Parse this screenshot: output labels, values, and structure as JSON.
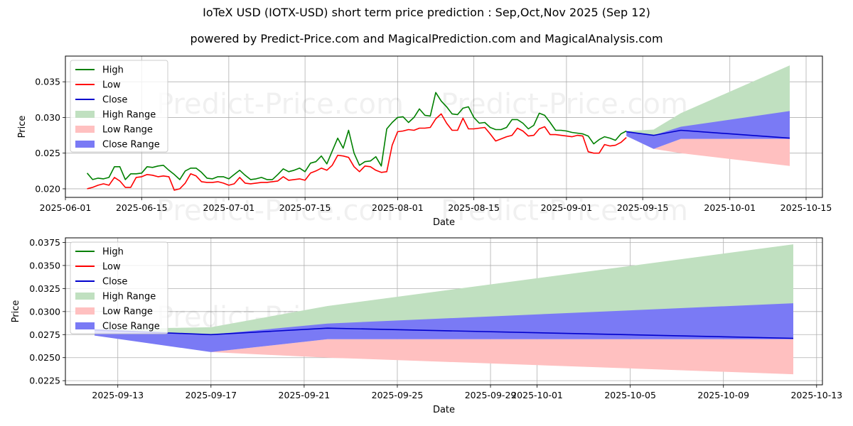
{
  "title": "IoTeX USD (IOTX-USD) short term price prediction : Sep,Oct,Nov 2025 (Sep 12)",
  "subtitle": "powered by Predict-Price.com and MagicalPrediction.com and MagicalAnalysis.com",
  "watermark": "Predict-Price.com",
  "colors": {
    "high": "#008000",
    "low": "#ff0000",
    "close": "#0000cd",
    "high_range": "#c0e0c0",
    "low_range": "#ffc0c0",
    "close_range": "#7a7af5"
  },
  "chart_data": [
    {
      "type": "line",
      "xlabel": "Date",
      "ylabel": "Price",
      "grid": true,
      "legend_position": "top-left",
      "xlim": [
        "2025-06-01",
        "2025-10-18"
      ],
      "ylim": [
        0.0188,
        0.0386
      ],
      "xticks": [
        "2025-06-01",
        "2025-06-15",
        "2025-07-01",
        "2025-07-15",
        "2025-08-01",
        "2025-08-15",
        "2025-09-01",
        "2025-09-15",
        "2025-10-01",
        "2025-10-15"
      ],
      "yticks": [
        "0.020",
        "0.025",
        "0.030",
        "0.035"
      ],
      "legend": [
        "High",
        "Low",
        "Close",
        "High Range",
        "Low Range",
        "Close Range"
      ],
      "history": {
        "dates": [
          "2025-06-05",
          "2025-06-06",
          "2025-06-07",
          "2025-06-08",
          "2025-06-09",
          "2025-06-10",
          "2025-06-11",
          "2025-06-12",
          "2025-06-13",
          "2025-06-14",
          "2025-06-15",
          "2025-06-16",
          "2025-06-17",
          "2025-06-18",
          "2025-06-19",
          "2025-06-20",
          "2025-06-21",
          "2025-06-22",
          "2025-06-23",
          "2025-06-24",
          "2025-06-25",
          "2025-06-26",
          "2025-06-27",
          "2025-06-28",
          "2025-06-29",
          "2025-06-30",
          "2025-07-01",
          "2025-07-02",
          "2025-07-03",
          "2025-07-04",
          "2025-07-05",
          "2025-07-06",
          "2025-07-07",
          "2025-07-08",
          "2025-07-09",
          "2025-07-10",
          "2025-07-11",
          "2025-07-12",
          "2025-07-13",
          "2025-07-14",
          "2025-07-15",
          "2025-07-16",
          "2025-07-17",
          "2025-07-18",
          "2025-07-19",
          "2025-07-20",
          "2025-07-21",
          "2025-07-22",
          "2025-07-23",
          "2025-07-24",
          "2025-07-25",
          "2025-07-26",
          "2025-07-27",
          "2025-07-28",
          "2025-07-29",
          "2025-07-30",
          "2025-07-31",
          "2025-08-01",
          "2025-08-02",
          "2025-08-03",
          "2025-08-04",
          "2025-08-05",
          "2025-08-06",
          "2025-08-07",
          "2025-08-08",
          "2025-08-09",
          "2025-08-10",
          "2025-08-11",
          "2025-08-12",
          "2025-08-13",
          "2025-08-14",
          "2025-08-15",
          "2025-08-16",
          "2025-08-17",
          "2025-08-18",
          "2025-08-19",
          "2025-08-20",
          "2025-08-21",
          "2025-08-22",
          "2025-08-23",
          "2025-08-24",
          "2025-08-25",
          "2025-08-26",
          "2025-08-27",
          "2025-08-28",
          "2025-08-29",
          "2025-08-30",
          "2025-08-31",
          "2025-09-01",
          "2025-09-02",
          "2025-09-03",
          "2025-09-04",
          "2025-09-05",
          "2025-09-06",
          "2025-09-07",
          "2025-09-08",
          "2025-09-09",
          "2025-09-10",
          "2025-09-11",
          "2025-09-12"
        ],
        "high": [
          0.0222,
          0.0213,
          0.0215,
          0.0214,
          0.0216,
          0.0231,
          0.0231,
          0.0213,
          0.0221,
          0.0221,
          0.0222,
          0.0231,
          0.023,
          0.0232,
          0.0233,
          0.0226,
          0.022,
          0.0213,
          0.0225,
          0.0229,
          0.0229,
          0.0223,
          0.0215,
          0.0214,
          0.0217,
          0.0217,
          0.0214,
          0.022,
          0.0226,
          0.0219,
          0.0213,
          0.0214,
          0.0216,
          0.0213,
          0.0213,
          0.022,
          0.0228,
          0.0224,
          0.0226,
          0.0229,
          0.0224,
          0.0236,
          0.0238,
          0.0246,
          0.0235,
          0.0253,
          0.0271,
          0.0257,
          0.0282,
          0.025,
          0.0233,
          0.0238,
          0.0239,
          0.0245,
          0.0232,
          0.0284,
          0.0293,
          0.03,
          0.0301,
          0.0293,
          0.03,
          0.0312,
          0.0303,
          0.0302,
          0.0335,
          0.0323,
          0.0315,
          0.0305,
          0.0304,
          0.0313,
          0.0315,
          0.03,
          0.0292,
          0.0293,
          0.0286,
          0.0283,
          0.0283,
          0.0286,
          0.0297,
          0.0297,
          0.0292,
          0.0284,
          0.0289,
          0.0306,
          0.0303,
          0.0293,
          0.0282,
          0.0282,
          0.0281,
          0.0279,
          0.0278,
          0.0277,
          0.0274,
          0.0263,
          0.0269,
          0.0273,
          0.0271,
          0.0268,
          0.0277,
          0.0281
        ],
        "low": [
          0.02,
          0.0202,
          0.0205,
          0.0207,
          0.0205,
          0.0216,
          0.0211,
          0.0202,
          0.0202,
          0.0216,
          0.0217,
          0.022,
          0.0219,
          0.0217,
          0.0218,
          0.0217,
          0.0198,
          0.02,
          0.0208,
          0.0221,
          0.0218,
          0.021,
          0.0209,
          0.0209,
          0.021,
          0.0208,
          0.0205,
          0.0207,
          0.0216,
          0.0208,
          0.0207,
          0.0208,
          0.0209,
          0.0209,
          0.021,
          0.0211,
          0.0217,
          0.0212,
          0.0213,
          0.0214,
          0.0212,
          0.0222,
          0.0225,
          0.0229,
          0.0226,
          0.0233,
          0.0247,
          0.0246,
          0.0244,
          0.0231,
          0.0224,
          0.0232,
          0.0231,
          0.0226,
          0.0223,
          0.0224,
          0.0261,
          0.028,
          0.0281,
          0.0283,
          0.0282,
          0.0285,
          0.0285,
          0.0286,
          0.0298,
          0.0305,
          0.0292,
          0.0282,
          0.0282,
          0.0299,
          0.0284,
          0.0284,
          0.0285,
          0.0286,
          0.0277,
          0.0267,
          0.027,
          0.0273,
          0.0275,
          0.0285,
          0.0281,
          0.0274,
          0.0275,
          0.0284,
          0.0287,
          0.0276,
          0.0276,
          0.0275,
          0.0274,
          0.0273,
          0.0275,
          0.0274,
          0.0252,
          0.025,
          0.025,
          0.0262,
          0.026,
          0.0261,
          0.0265,
          0.0272
        ]
      },
      "forecast": {
        "dates": [
          "2025-09-12",
          "2025-09-17",
          "2025-09-22",
          "2025-10-12"
        ],
        "close": [
          0.028,
          0.0275,
          0.0282,
          0.0271
        ],
        "high_range": {
          "lower": [
            0.0281,
            0.0275,
            0.0282,
            0.0271
          ],
          "upper": [
            0.0281,
            0.0283,
            0.0306,
            0.0373
          ]
        },
        "low_range": {
          "lower": [
            0.0275,
            0.0256,
            0.025,
            0.0232
          ],
          "upper": [
            0.0275,
            0.0256,
            0.027,
            0.027
          ]
        },
        "close_range": {
          "lower": [
            0.0274,
            0.0256,
            0.027,
            0.027
          ],
          "upper": [
            0.0281,
            0.0275,
            0.0287,
            0.0309
          ]
        }
      }
    },
    {
      "type": "line",
      "xlabel": "Date",
      "ylabel": "Price",
      "grid": true,
      "legend_position": "top-left",
      "xlim": [
        "2025-09-10T18:00",
        "2025-10-13T06:00"
      ],
      "ylim": [
        0.02205,
        0.038
      ],
      "xticks": [
        "2025-09-13",
        "2025-09-17",
        "2025-09-21",
        "2025-09-25",
        "2025-09-29",
        "2025-10-01",
        "2025-10-05",
        "2025-10-09",
        "2025-10-13"
      ],
      "yticks": [
        "0.0225",
        "0.0250",
        "0.0275",
        "0.0300",
        "0.0325",
        "0.0350",
        "0.0375"
      ],
      "legend": [
        "High",
        "Low",
        "Close",
        "High Range",
        "Low Range",
        "Close Range"
      ],
      "forecast": {
        "dates": [
          "2025-09-12",
          "2025-09-17",
          "2025-09-22",
          "2025-10-12"
        ],
        "close": [
          0.028,
          0.0275,
          0.0282,
          0.0271
        ],
        "high_range": {
          "lower": [
            0.0281,
            0.0275,
            0.0282,
            0.0271
          ],
          "upper": [
            0.0281,
            0.0283,
            0.0306,
            0.0373
          ]
        },
        "low_range": {
          "lower": [
            0.0275,
            0.0256,
            0.025,
            0.0232
          ],
          "upper": [
            0.0275,
            0.0256,
            0.027,
            0.027
          ]
        },
        "close_range": {
          "lower": [
            0.0274,
            0.0256,
            0.027,
            0.027
          ],
          "upper": [
            0.0281,
            0.0275,
            0.0287,
            0.0309
          ]
        }
      }
    }
  ]
}
